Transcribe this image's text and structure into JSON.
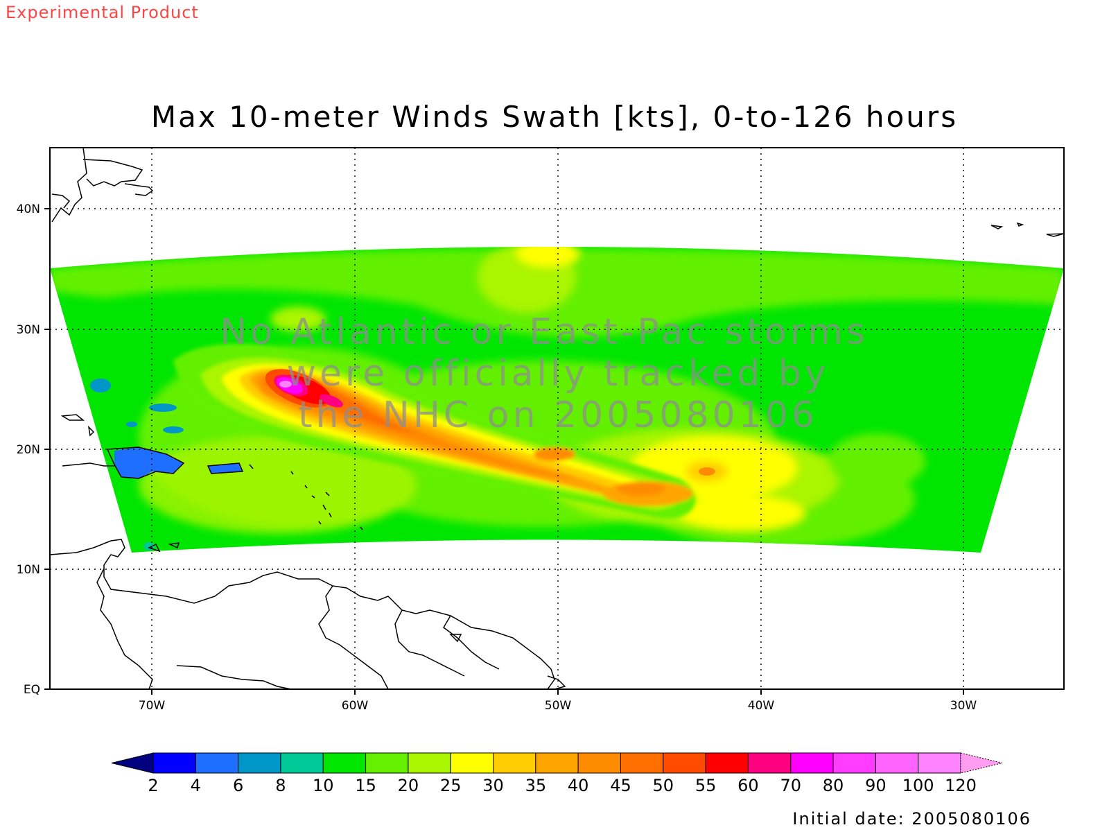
{
  "header": {
    "product_tag": "Experimental Product"
  },
  "title": "Max 10-meter Winds Swath [kts], 0-to-126 hours",
  "map": {
    "projection": "lat-lon",
    "lon_range": [
      -75,
      -25
    ],
    "lat_range": [
      0,
      45
    ],
    "lon_ticks": [
      {
        "value": -70,
        "label": "70W"
      },
      {
        "value": -60,
        "label": "60W"
      },
      {
        "value": -50,
        "label": "50W"
      },
      {
        "value": -40,
        "label": "40W"
      },
      {
        "value": -30,
        "label": "30W"
      }
    ],
    "lat_ticks": [
      {
        "value": 40,
        "label": "40N"
      },
      {
        "value": 30,
        "label": "30N"
      },
      {
        "value": 20,
        "label": "20N"
      },
      {
        "value": 10,
        "label": "10N"
      },
      {
        "value": 0,
        "label": "EQ"
      }
    ],
    "grid": "dotted",
    "swath_peak_kts": 90,
    "swath_axis": "northwest-southeast, from about 25N 64W to 16N 44W"
  },
  "message": [
    "No Atlantic or East-Pac storms",
    "were officially tracked by",
    "the NHC on 2005080106"
  ],
  "colorbar": {
    "levels": [
      "2",
      "4",
      "6",
      "8",
      "10",
      "15",
      "20",
      "25",
      "30",
      "35",
      "40",
      "45",
      "50",
      "55",
      "60",
      "70",
      "80",
      "90",
      "100",
      "120"
    ],
    "colors": [
      "#000080",
      "#0000ff",
      "#1e6fff",
      "#0096c8",
      "#00c896",
      "#00e600",
      "#64f000",
      "#aaf500",
      "#ffff00",
      "#ffcd00",
      "#ffa500",
      "#ff8c00",
      "#ff6e00",
      "#ff4b00",
      "#ff0000",
      "#ff0080",
      "#ff00ff",
      "#ff3cff",
      "#ff64ff",
      "#ff82ff",
      "#ff9ef0"
    ]
  },
  "footer": {
    "initial_date": "Initial date: 2005080106"
  }
}
